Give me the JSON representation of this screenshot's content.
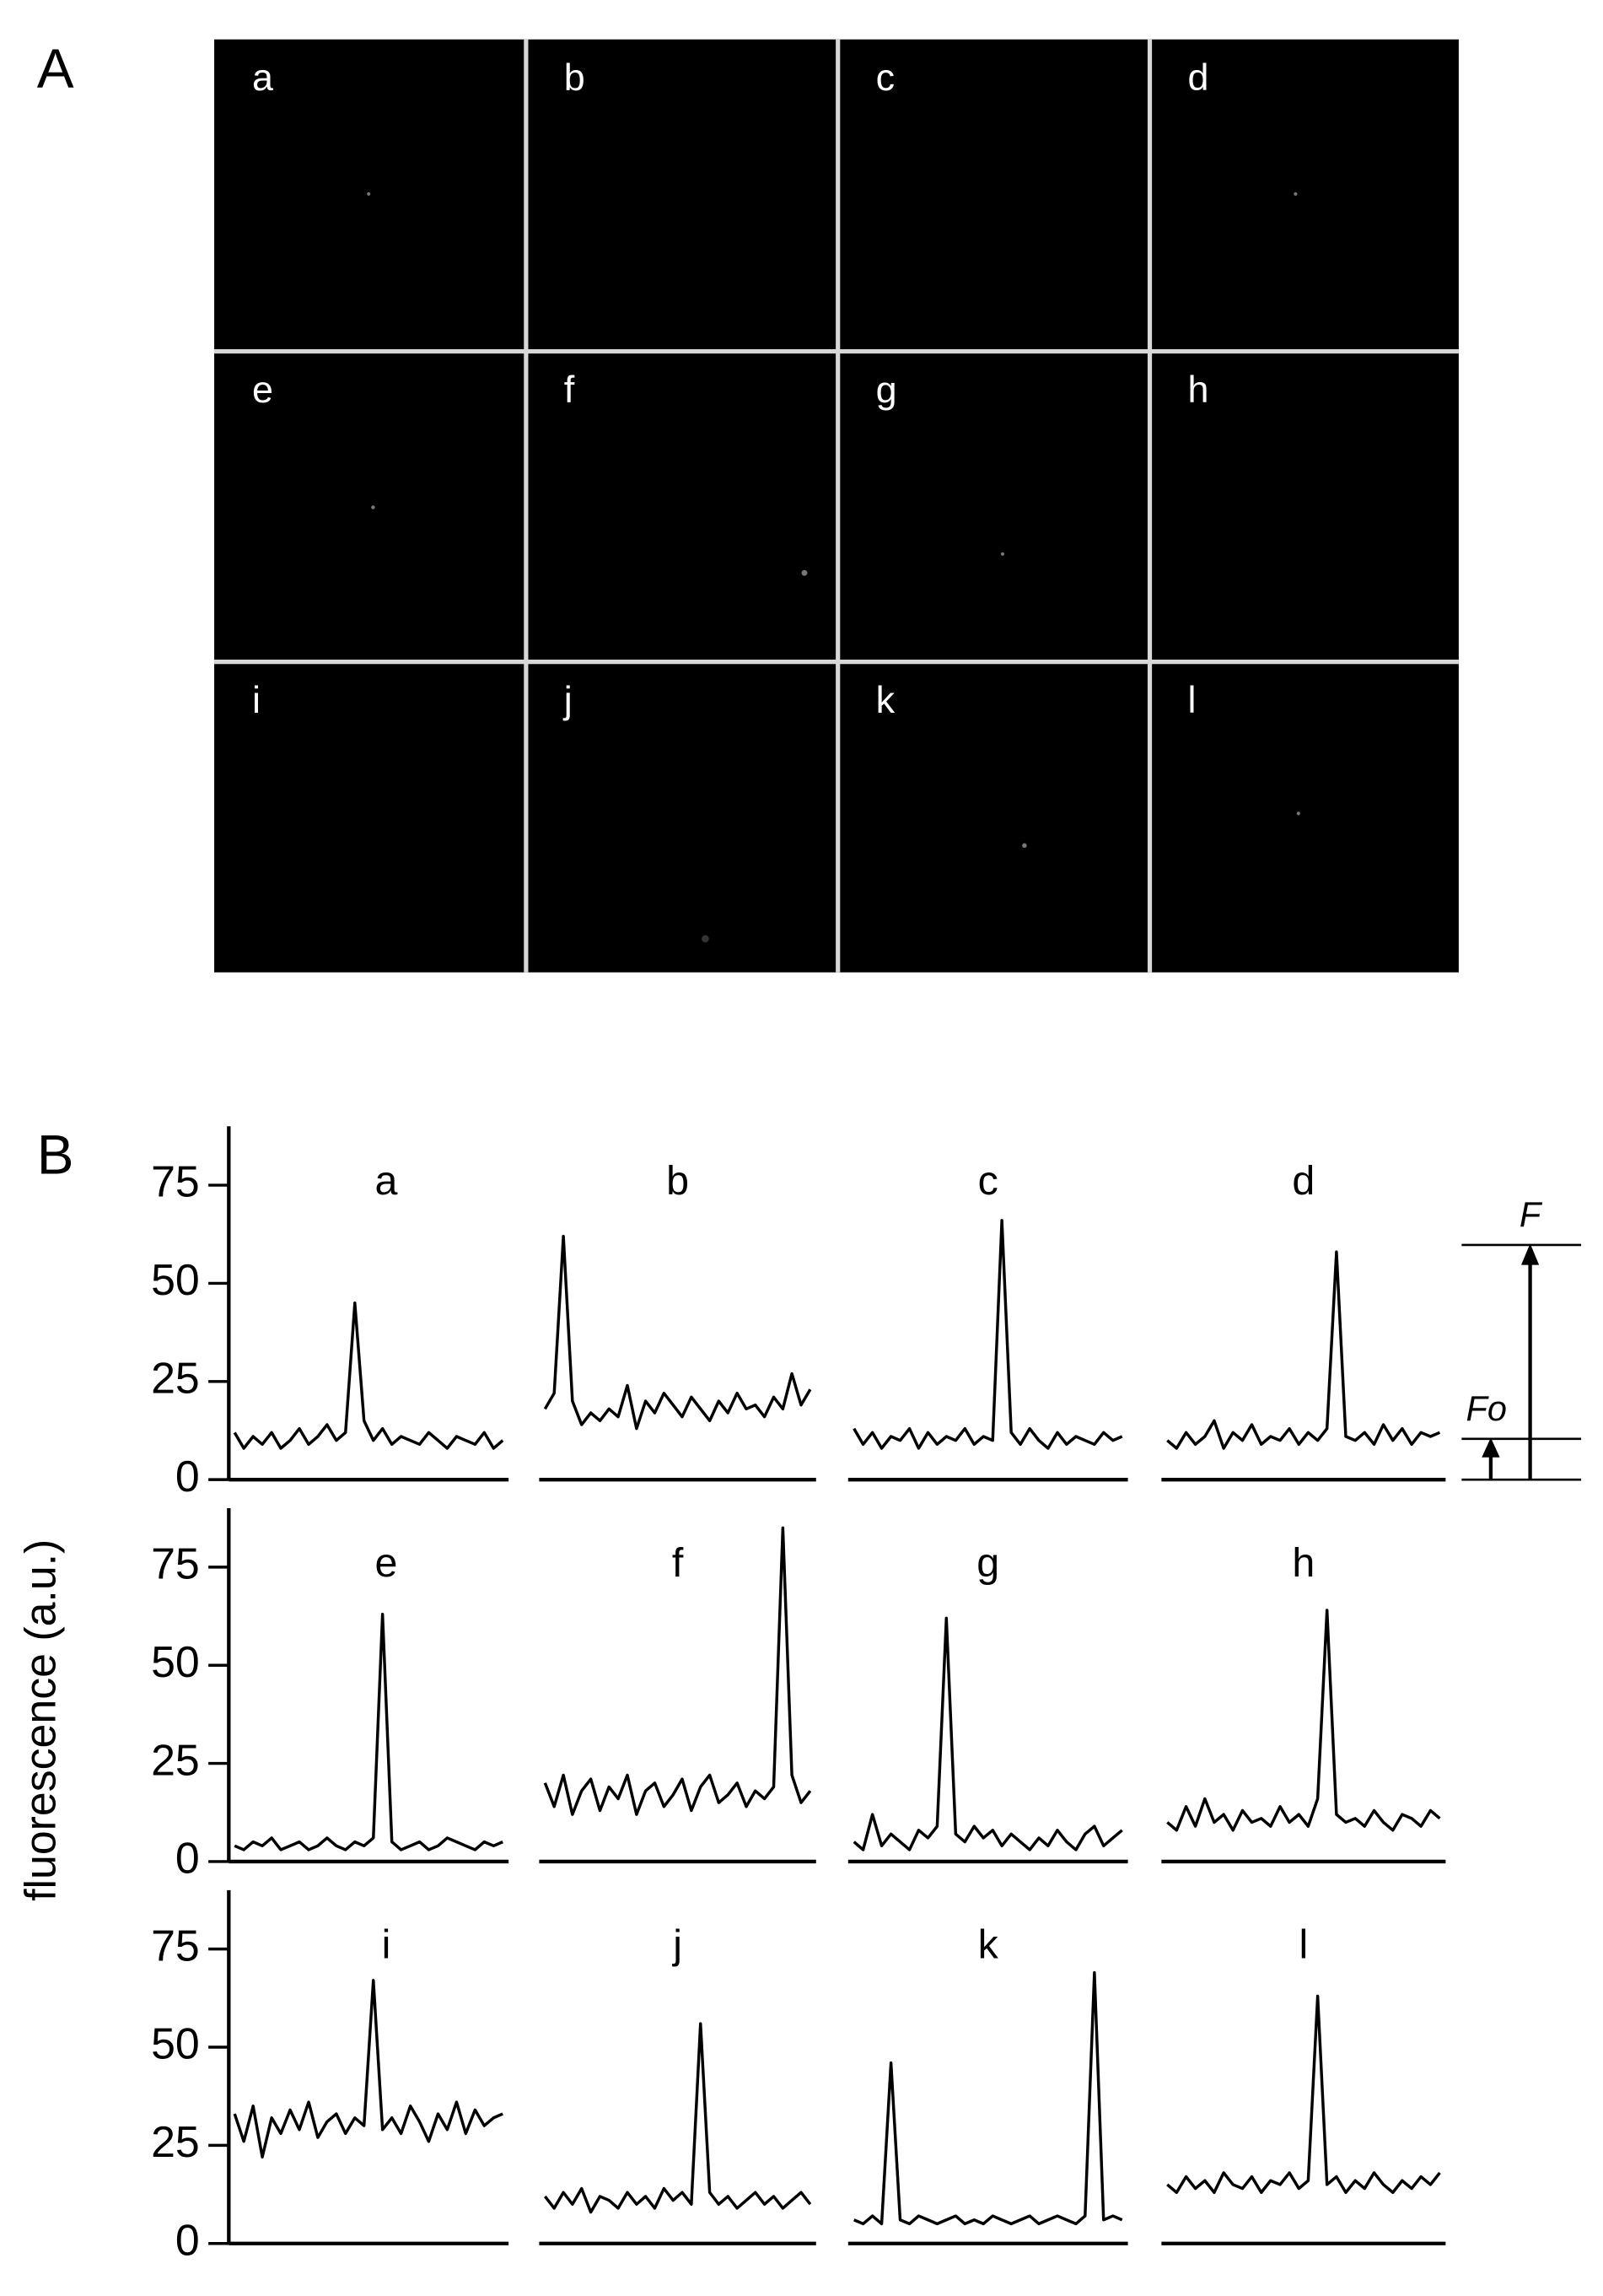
{
  "panel_a": {
    "label": "A",
    "labels": [
      "a",
      "b",
      "c",
      "d",
      "e",
      "f",
      "g",
      "h",
      "i",
      "j",
      "k",
      "l"
    ]
  },
  "panel_b": {
    "label": "B",
    "y_label": "fluorescence (a.u.)",
    "inset": {
      "top_label": "F",
      "bottom_label": "Fo"
    }
  },
  "chart_data": [
    {
      "type": "line",
      "title": "a",
      "color": "#000000",
      "ylim": [
        0,
        90
      ],
      "yticks": [
        0,
        25,
        50,
        75
      ],
      "values": [
        12,
        8,
        11,
        9,
        12,
        8,
        10,
        13,
        9,
        11,
        14,
        10,
        12,
        45,
        15,
        10,
        13,
        9,
        11,
        10,
        9,
        12,
        10,
        8,
        11,
        10,
        9,
        12,
        8,
        10
      ]
    },
    {
      "type": "line",
      "title": "b",
      "color": "#000000",
      "ylim": [
        0,
        90
      ],
      "values": [
        18,
        22,
        62,
        20,
        14,
        17,
        15,
        18,
        16,
        24,
        13,
        20,
        17,
        22,
        19,
        16,
        21,
        18,
        15,
        20,
        17,
        22,
        18,
        19,
        16,
        21,
        18,
        27,
        19,
        23
      ]
    },
    {
      "type": "line",
      "title": "c",
      "color": "#000000",
      "ylim": [
        0,
        90
      ],
      "values": [
        13,
        9,
        12,
        8,
        11,
        10,
        13,
        8,
        12,
        9,
        11,
        10,
        13,
        9,
        11,
        10,
        66,
        12,
        9,
        13,
        10,
        8,
        12,
        9,
        11,
        10,
        9,
        12,
        10,
        11
      ]
    },
    {
      "type": "line",
      "title": "d",
      "color": "#000000",
      "ylim": [
        0,
        90
      ],
      "values": [
        10,
        8,
        12,
        9,
        11,
        15,
        8,
        12,
        10,
        14,
        9,
        11,
        10,
        13,
        9,
        12,
        10,
        13,
        58,
        11,
        10,
        12,
        9,
        14,
        10,
        13,
        9,
        12,
        11,
        12
      ]
    },
    {
      "type": "line",
      "title": "e",
      "color": "#000000",
      "ylim": [
        0,
        90
      ],
      "yticks": [
        0,
        25,
        50,
        75
      ],
      "values": [
        4,
        3,
        5,
        4,
        6,
        3,
        4,
        5,
        3,
        4,
        6,
        4,
        3,
        5,
        4,
        6,
        63,
        5,
        3,
        4,
        5,
        3,
        4,
        6,
        5,
        4,
        3,
        5,
        4,
        5
      ]
    },
    {
      "type": "line",
      "title": "f",
      "color": "#000000",
      "ylim": [
        0,
        90
      ],
      "values": [
        20,
        14,
        22,
        12,
        18,
        21,
        13,
        19,
        16,
        22,
        12,
        18,
        20,
        14,
        17,
        21,
        13,
        19,
        22,
        15,
        17,
        20,
        14,
        18,
        16,
        19,
        85,
        22,
        15,
        18
      ]
    },
    {
      "type": "line",
      "title": "g",
      "color": "#000000",
      "ylim": [
        0,
        90
      ],
      "values": [
        5,
        3,
        12,
        4,
        7,
        5,
        3,
        8,
        6,
        9,
        62,
        7,
        5,
        9,
        6,
        8,
        4,
        7,
        5,
        3,
        6,
        4,
        8,
        5,
        3,
        7,
        9,
        4,
        6,
        8
      ]
    },
    {
      "type": "line",
      "title": "h",
      "color": "#000000",
      "ylim": [
        0,
        90
      ],
      "values": [
        10,
        8,
        14,
        9,
        16,
        10,
        12,
        8,
        13,
        10,
        11,
        9,
        14,
        10,
        12,
        9,
        16,
        64,
        12,
        10,
        11,
        9,
        13,
        10,
        8,
        12,
        11,
        9,
        13,
        11
      ]
    },
    {
      "type": "line",
      "title": "i",
      "color": "#000000",
      "ylim": [
        0,
        90
      ],
      "yticks": [
        0,
        25,
        50,
        75
      ],
      "values": [
        33,
        26,
        35,
        22,
        32,
        28,
        34,
        29,
        36,
        27,
        31,
        33,
        28,
        32,
        30,
        67,
        29,
        32,
        28,
        35,
        31,
        26,
        33,
        29,
        36,
        28,
        34,
        30,
        32,
        33
      ]
    },
    {
      "type": "line",
      "title": "j",
      "color": "#000000",
      "ylim": [
        0,
        90
      ],
      "values": [
        12,
        9,
        13,
        10,
        14,
        8,
        12,
        11,
        9,
        13,
        10,
        12,
        9,
        14,
        11,
        13,
        10,
        56,
        13,
        10,
        12,
        9,
        11,
        13,
        10,
        12,
        9,
        11,
        13,
        10
      ]
    },
    {
      "type": "line",
      "title": "k",
      "color": "#000000",
      "ylim": [
        0,
        90
      ],
      "values": [
        6,
        5,
        7,
        5,
        46,
        6,
        5,
        7,
        6,
        5,
        6,
        7,
        5,
        6,
        5,
        7,
        6,
        5,
        6,
        7,
        5,
        6,
        7,
        6,
        5,
        7,
        69,
        6,
        7,
        6
      ]
    },
    {
      "type": "line",
      "title": "l",
      "color": "#000000",
      "ylim": [
        0,
        90
      ],
      "values": [
        15,
        13,
        17,
        14,
        16,
        13,
        18,
        15,
        14,
        17,
        13,
        16,
        15,
        18,
        14,
        16,
        63,
        15,
        17,
        13,
        16,
        14,
        18,
        15,
        13,
        16,
        14,
        17,
        15,
        18
      ]
    }
  ]
}
